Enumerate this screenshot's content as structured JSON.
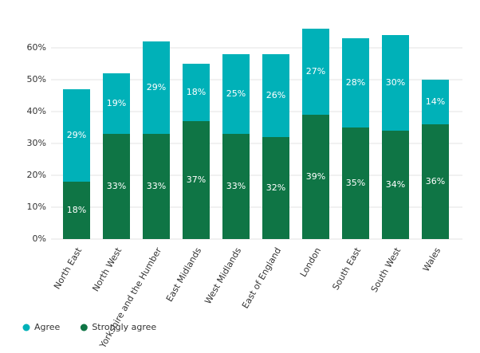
{
  "chart_data": {
    "type": "stacked_bar",
    "categories": [
      "North East",
      "North West",
      "Yorkshire and the Humber",
      "East Midlands",
      "West Midlands",
      "East of England",
      "London",
      "South East",
      "South West",
      "Wales"
    ],
    "series": [
      {
        "name": "Agree",
        "color": "#00b1b8",
        "values": [
          29,
          19,
          29,
          18,
          25,
          26,
          27,
          28,
          30,
          14
        ],
        "value_labels": [
          "29%",
          "19%",
          "29%",
          "18%",
          "25%",
          "26%",
          "27%",
          "28%",
          "30%",
          "14%"
        ]
      },
      {
        "name": "Strongly agree",
        "color": "#0f7545",
        "values": [
          18,
          33,
          33,
          37,
          33,
          32,
          39,
          35,
          34,
          36
        ],
        "value_labels": [
          "18%",
          "33%",
          "33%",
          "37%",
          "33%",
          "32%",
          "39%",
          "35%",
          "34%",
          "36%"
        ]
      }
    ],
    "ylim": [
      0,
      66
    ],
    "yticks": [
      {
        "value": 0,
        "label": "0%"
      },
      {
        "value": 10,
        "label": "10%"
      },
      {
        "value": 20,
        "label": "20%"
      },
      {
        "value": 30,
        "label": "30%"
      },
      {
        "value": 40,
        "label": "40%"
      },
      {
        "value": 50,
        "label": "50%"
      },
      {
        "value": 60,
        "label": "60%"
      }
    ],
    "grid": true,
    "legend": "bottom-left"
  }
}
